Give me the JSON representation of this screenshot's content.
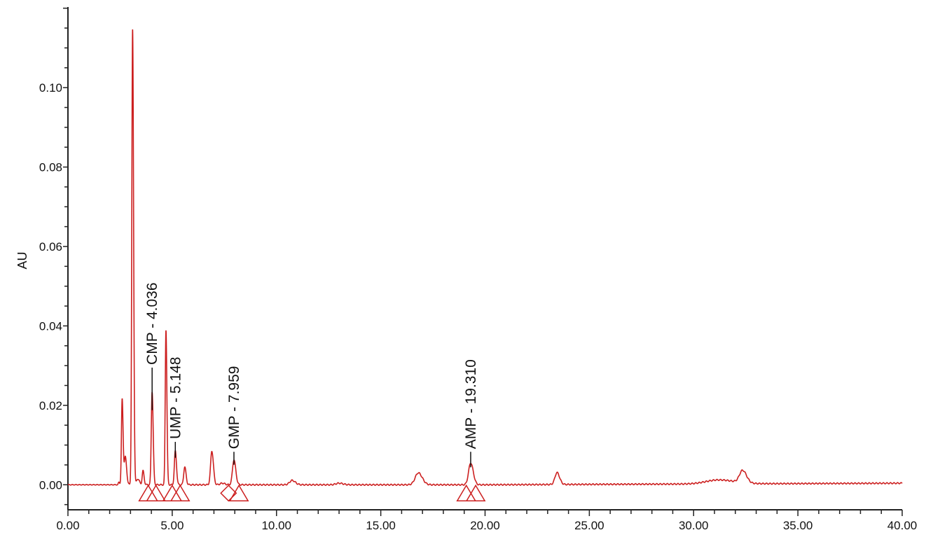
{
  "chart_data": {
    "type": "line",
    "title": "",
    "xlabel": "",
    "ylabel": "AU",
    "xlim": [
      0,
      40
    ],
    "ylim": [
      -0.0063,
      0.1203
    ],
    "grid": false,
    "x_ticks": [
      "0.00",
      "5.00",
      "10.00",
      "15.00",
      "20.00",
      "25.00",
      "30.00",
      "35.00",
      "40.00"
    ],
    "x_tick_values": [
      0,
      5,
      10,
      15,
      20,
      25,
      30,
      35,
      40
    ],
    "x_minor_step": 1,
    "y_ticks": [
      "0.00",
      "0.02",
      "0.04",
      "0.06",
      "0.08",
      "0.10"
    ],
    "y_tick_values": [
      0,
      0.02,
      0.04,
      0.06,
      0.08,
      0.1
    ],
    "y_minor_step": 0.005,
    "colors": {
      "trace": "#cc1f1f",
      "marker": "#cc1f1f",
      "axis": "#222222",
      "label_line": "#111111"
    },
    "peaks": [
      {
        "rt": 2.45,
        "height": 0.0006,
        "width": 0.03
      },
      {
        "rt": 2.6,
        "height": 0.0215,
        "width": 0.035
      },
      {
        "rt": 2.75,
        "height": 0.007,
        "width": 0.05
      },
      {
        "rt": 3.1,
        "height": 0.1145,
        "width": 0.038
      },
      {
        "rt": 3.6,
        "height": 0.0035,
        "width": 0.04
      },
      {
        "rt": 3.35,
        "height": 0.0015,
        "width": 0.06
      },
      {
        "rt": 4.036,
        "height": 0.0235,
        "width": 0.04
      },
      {
        "rt": 4.7,
        "height": 0.039,
        "width": 0.035
      },
      {
        "rt": 5.148,
        "height": 0.0085,
        "width": 0.045
      },
      {
        "rt": 5.6,
        "height": 0.0045,
        "width": 0.05
      },
      {
        "rt": 6.9,
        "height": 0.0085,
        "width": 0.06
      },
      {
        "rt": 7.4,
        "height": 0.0004,
        "width": 0.1
      },
      {
        "rt": 7.959,
        "height": 0.0063,
        "width": 0.07
      },
      {
        "rt": 10.75,
        "height": 0.0011,
        "width": 0.12
      },
      {
        "rt": 13.0,
        "height": 0.0004,
        "width": 0.15
      },
      {
        "rt": 16.8,
        "height": 0.003,
        "width": 0.15
      },
      {
        "rt": 19.31,
        "height": 0.0055,
        "width": 0.1
      },
      {
        "rt": 23.45,
        "height": 0.003,
        "width": 0.1
      },
      {
        "rt": 31.2,
        "height": 0.001,
        "width": 0.6
      },
      {
        "rt": 32.35,
        "height": 0.0031,
        "width": 0.15
      }
    ],
    "baseline_drift_end": 0.0004,
    "annotations": [
      {
        "label": "CMP - 4.036",
        "rt": 4.036,
        "height": 0.0235,
        "line_top": 0.0295
      },
      {
        "label": "UMP - 5.148",
        "rt": 5.148,
        "height": 0.0085,
        "line_top": 0.0108
      },
      {
        "label": "GMP - 7.959",
        "rt": 7.959,
        "height": 0.0063,
        "line_top": 0.0083
      },
      {
        "label": "AMP - 19.310",
        "rt": 19.31,
        "height": 0.0055,
        "line_top": 0.0083
      }
    ],
    "integration_markers": [
      {
        "x": 3.85,
        "shape": "triangle"
      },
      {
        "x": 4.22,
        "shape": "triangle"
      },
      {
        "x": 5.0,
        "shape": "triangle"
      },
      {
        "x": 5.38,
        "shape": "triangle"
      },
      {
        "x": 7.7,
        "shape": "diamond"
      },
      {
        "x": 8.2,
        "shape": "triangle"
      },
      {
        "x": 19.1,
        "shape": "triangle"
      },
      {
        "x": 19.55,
        "shape": "triangle"
      }
    ]
  }
}
